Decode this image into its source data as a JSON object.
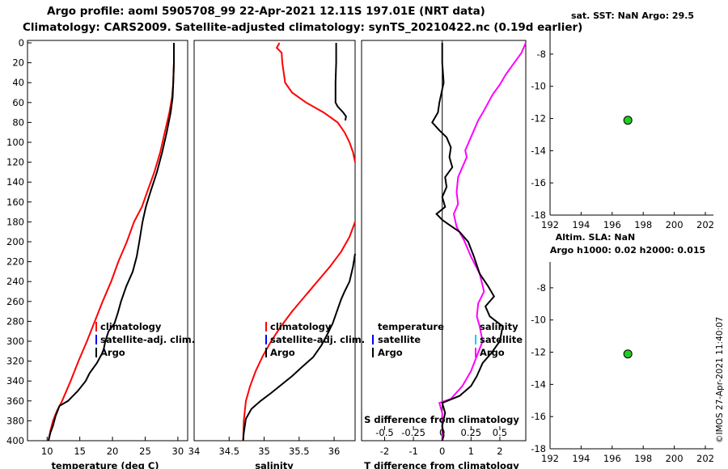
{
  "header": {
    "line1": "Argo profile: aoml 5905708_99 22-Apr-2021 12.11S 197.01E (NRT data)",
    "line2": "Climatology: CARS2009. Satellite-adjusted climatology: synTS_20210422.nc (0.19d earlier)"
  },
  "stamp": "©IMOS 27-Apr-2021 11:40:07",
  "colors": {
    "argo": "#000000",
    "climatology": "#ff0000",
    "satellite": "#0000ff",
    "salinity_diff": "#ff00ff",
    "salinity_sat": "#00ccff",
    "marker": "#22cc22"
  },
  "chart_data": [
    {
      "type": "line",
      "id": "temperature",
      "title": "",
      "xlabel": "temperature (deg C)",
      "ylabel": "",
      "xlim": [
        7,
        31.5
      ],
      "ylim": [
        400,
        0
      ],
      "xticks": [
        10,
        15,
        20,
        25,
        30
      ],
      "xtick_labels": [
        "10",
        "15",
        "20",
        "25",
        "30"
      ],
      "yticks": [
        0,
        20,
        40,
        60,
        80,
        100,
        120,
        140,
        160,
        180,
        200,
        220,
        240,
        260,
        280,
        300,
        320,
        340,
        360,
        380,
        400
      ],
      "legend": [
        "climatology",
        "satellite-adj. clim.",
        "Argo"
      ],
      "series": [
        {
          "name": "Argo",
          "color_key": "argo",
          "points": [
            [
              29.4,
              0
            ],
            [
              29.4,
              20
            ],
            [
              29.3,
              40
            ],
            [
              29.2,
              55
            ],
            [
              28.9,
              70
            ],
            [
              28.3,
              90
            ],
            [
              27.6,
              110
            ],
            [
              26.8,
              130
            ],
            [
              25.8,
              150
            ],
            [
              25.1,
              165
            ],
            [
              24.6,
              180
            ],
            [
              24.1,
              200
            ],
            [
              23.7,
              215
            ],
            [
              23.1,
              230
            ],
            [
              22.1,
              245
            ],
            [
              21.3,
              260
            ],
            [
              20.8,
              272
            ],
            [
              20.3,
              282
            ],
            [
              19.4,
              290
            ],
            [
              18.9,
              300
            ],
            [
              18.6,
              310
            ],
            [
              17.6,
              322
            ],
            [
              16.5,
              332
            ],
            [
              15.9,
              340
            ],
            [
              14.7,
              350
            ],
            [
              13.2,
              360
            ],
            [
              11.9,
              365
            ],
            [
              11.3,
              375
            ],
            [
              10.9,
              385
            ],
            [
              10.5,
              392
            ],
            [
              10.2,
              400
            ]
          ]
        },
        {
          "name": "climatology",
          "color_key": "climatology",
          "points": [
            [
              29.4,
              0
            ],
            [
              29.4,
              20
            ],
            [
              29.3,
              40
            ],
            [
              29.1,
              55
            ],
            [
              28.7,
              70
            ],
            [
              28.0,
              90
            ],
            [
              27.3,
              110
            ],
            [
              26.4,
              130
            ],
            [
              25.3,
              150
            ],
            [
              24.5,
              165
            ],
            [
              23.3,
              180
            ],
            [
              22.2,
              200
            ],
            [
              20.9,
              220
            ],
            [
              19.8,
              240
            ],
            [
              18.5,
              260
            ],
            [
              17.3,
              280
            ],
            [
              16.1,
              300
            ],
            [
              14.8,
              320
            ],
            [
              13.6,
              340
            ],
            [
              12.3,
              360
            ],
            [
              11.5,
              370
            ],
            [
              10.9,
              380
            ],
            [
              10.5,
              390
            ],
            [
              10.2,
              400
            ]
          ]
        }
      ]
    },
    {
      "type": "line",
      "id": "salinity",
      "title": "",
      "xlabel": "salinity",
      "ylabel": "",
      "xlim": [
        34.0,
        36.3
      ],
      "ylim": [
        400,
        0
      ],
      "xticks": [
        34,
        34.5,
        35,
        35.5,
        36
      ],
      "xtick_labels": [
        "34",
        "34.5",
        "35",
        "35.5",
        "36"
      ],
      "legend": [
        "climatology",
        "satellite-adj. clim.",
        "Argo"
      ],
      "series": [
        {
          "name": "Argo",
          "color_key": "argo",
          "points": [
            [
              36.03,
              0
            ],
            [
              36.03,
              20
            ],
            [
              36.02,
              40
            ],
            [
              36.02,
              60
            ],
            [
              36.05,
              64
            ],
            [
              36.13,
              70
            ],
            [
              36.17,
              74
            ],
            [
              36.16,
              78
            ]
          ]
        },
        {
          "name": "Argo",
          "color_key": "argo",
          "points": [
            [
              36.3,
              212
            ],
            [
              36.27,
              225
            ],
            [
              36.22,
              240
            ],
            [
              36.15,
              250
            ],
            [
              36.1,
              258
            ],
            [
              36.04,
              270
            ],
            [
              35.98,
              282
            ],
            [
              35.91,
              292
            ],
            [
              35.82,
              304
            ],
            [
              35.7,
              316
            ],
            [
              35.54,
              326
            ],
            [
              35.4,
              335
            ],
            [
              35.26,
              343
            ],
            [
              35.1,
              352
            ],
            [
              34.95,
              360
            ],
            [
              34.82,
              368
            ],
            [
              34.74,
              378
            ],
            [
              34.71,
              392
            ],
            [
              34.7,
              400
            ]
          ]
        },
        {
          "name": "climatology",
          "color_key": "climatology",
          "points": [
            [
              35.22,
              0
            ],
            [
              35.18,
              5
            ],
            [
              35.25,
              10
            ],
            [
              35.26,
              20
            ],
            [
              35.3,
              40
            ],
            [
              35.4,
              50
            ],
            [
              35.6,
              60
            ],
            [
              35.85,
              70
            ],
            [
              36.05,
              80
            ],
            [
              36.15,
              90
            ],
            [
              36.22,
              100
            ],
            [
              36.27,
              110
            ],
            [
              36.3,
              120
            ]
          ]
        },
        {
          "name": "climatology",
          "color_key": "climatology",
          "points": [
            [
              36.3,
              180
            ],
            [
              36.22,
              195
            ],
            [
              36.1,
              210
            ],
            [
              35.94,
              225
            ],
            [
              35.76,
              240
            ],
            [
              35.58,
              255
            ],
            [
              35.4,
              270
            ],
            [
              35.24,
              285
            ],
            [
              35.1,
              300
            ],
            [
              34.98,
              315
            ],
            [
              34.88,
              330
            ],
            [
              34.8,
              345
            ],
            [
              34.74,
              360
            ],
            [
              34.71,
              380
            ],
            [
              34.7,
              400
            ]
          ]
        }
      ]
    },
    {
      "type": "line",
      "id": "differences",
      "title": "",
      "xlabel": "T difference from climatology",
      "secondary_xlabel": "S difference from climatology",
      "ylabel": "",
      "xlim": [
        -2.8,
        2.9
      ],
      "ylim": [
        400,
        0
      ],
      "xticks": [
        -2,
        -1,
        0,
        1,
        2
      ],
      "xtick_labels": [
        "-2",
        "-1",
        "0",
        "1",
        "2"
      ],
      "secondary_xticks": [
        -0.5,
        -0.25,
        0,
        0.25,
        0.5
      ],
      "secondary_xtick_labels": [
        "-0.5",
        "-0.25",
        "0",
        "0.25",
        "0.5"
      ],
      "legend_left": [
        "temperature",
        "satellite",
        "Argo"
      ],
      "legend_right": [
        "salinity",
        "satellite",
        "Argo"
      ],
      "series": [
        {
          "name": "T difference",
          "color_key": "argo",
          "points": [
            [
              0.0,
              0
            ],
            [
              0.0,
              20
            ],
            [
              0.05,
              40
            ],
            [
              -0.1,
              60
            ],
            [
              -0.15,
              70
            ],
            [
              -0.35,
              80
            ],
            [
              -0.1,
              88
            ],
            [
              0.15,
              95
            ],
            [
              0.3,
              105
            ],
            [
              0.25,
              115
            ],
            [
              0.35,
              125
            ],
            [
              0.1,
              135
            ],
            [
              0.15,
              145
            ],
            [
              0.0,
              155
            ],
            [
              0.1,
              165
            ],
            [
              -0.2,
              172
            ],
            [
              0.0,
              178
            ],
            [
              0.2,
              182
            ],
            [
              0.6,
              190
            ],
            [
              0.9,
              200
            ],
            [
              1.1,
              215
            ],
            [
              1.3,
              232
            ],
            [
              1.6,
              245
            ],
            [
              1.8,
              255
            ],
            [
              1.5,
              265
            ],
            [
              1.65,
              275
            ],
            [
              2.1,
              285
            ],
            [
              2.0,
              300
            ],
            [
              1.7,
              312
            ],
            [
              1.4,
              322
            ],
            [
              1.2,
              335
            ],
            [
              1.0,
              345
            ],
            [
              0.6,
              355
            ],
            [
              0.0,
              362
            ],
            [
              0.1,
              372
            ],
            [
              0.0,
              385
            ],
            [
              0.05,
              395
            ],
            [
              0.0,
              400
            ]
          ]
        },
        {
          "name": "S difference",
          "color_key": "salinity_diff",
          "points": [
            [
              2.9,
              0
            ],
            [
              2.75,
              10
            ],
            [
              2.45,
              22
            ],
            [
              2.2,
              32
            ],
            [
              2.0,
              42
            ],
            [
              1.75,
              52
            ],
            [
              1.6,
              60
            ],
            [
              1.45,
              68
            ],
            [
              1.25,
              78
            ],
            [
              1.1,
              88
            ],
            [
              0.95,
              98
            ],
            [
              0.8,
              108
            ],
            [
              0.85,
              115
            ],
            [
              0.7,
              125
            ],
            [
              0.55,
              135
            ],
            [
              0.5,
              150
            ],
            [
              0.55,
              162
            ],
            [
              0.4,
              172
            ],
            [
              0.5,
              185
            ],
            [
              0.75,
              198
            ],
            [
              1.0,
              215
            ],
            [
              1.3,
              232
            ],
            [
              1.45,
              250
            ],
            [
              1.25,
              262
            ],
            [
              1.2,
              275
            ],
            [
              1.3,
              285
            ],
            [
              1.4,
              300
            ],
            [
              1.2,
              315
            ],
            [
              1.0,
              330
            ],
            [
              0.7,
              345
            ],
            [
              0.3,
              358
            ],
            [
              -0.1,
              362
            ],
            [
              0.0,
              372
            ],
            [
              0.0,
              400
            ]
          ]
        }
      ]
    },
    {
      "type": "scatter",
      "id": "sst_panel",
      "title": "sat. SST: NaN Argo: 29.5",
      "xlim": [
        192,
        202
      ],
      "ylim": [
        -18,
        -7
      ],
      "xticks": [
        192,
        194,
        196,
        198,
        200,
        202
      ],
      "xtick_labels": [
        "192",
        "194",
        "196",
        "198",
        "200",
        "202"
      ],
      "yticks": [
        -8,
        -10,
        -12,
        -14,
        -16,
        -18
      ],
      "ytick_labels": [
        "-8",
        "-10",
        "-12",
        "-14",
        "-16",
        "-18"
      ],
      "points": [
        {
          "x": 197.01,
          "y": -12.11
        }
      ]
    },
    {
      "type": "scatter",
      "id": "sla_panel",
      "title": "Altim. SLA: NaN",
      "subtitle": "Argo h1000: 0.02 h2000: 0.015",
      "xlim": [
        192,
        202
      ],
      "ylim": [
        -18,
        -7
      ],
      "xticks": [
        192,
        194,
        196,
        198,
        200,
        202
      ],
      "xtick_labels": [
        "192",
        "194",
        "196",
        "198",
        "200",
        "202"
      ],
      "yticks": [
        -8,
        -10,
        -12,
        -14,
        -16,
        -18
      ],
      "ytick_labels": [
        "-8",
        "-10",
        "-12",
        "-14",
        "-16",
        "-18"
      ],
      "points": [
        {
          "x": 197.01,
          "y": -12.11
        }
      ]
    }
  ]
}
